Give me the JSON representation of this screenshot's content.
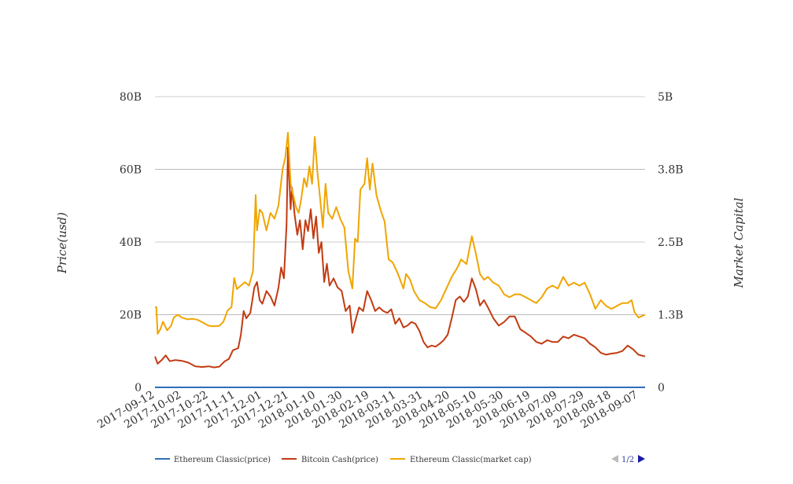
{
  "chart_data": {
    "type": "line",
    "y_left": {
      "title": "Price(usd)",
      "range": [
        0,
        80000000000
      ],
      "ticks": [
        0,
        20000000000,
        40000000000,
        60000000000,
        80000000000
      ],
      "tick_labels": [
        "0",
        "20B",
        "40B",
        "60B",
        "80B"
      ]
    },
    "y_right": {
      "title": "Market Capital",
      "range": [
        0,
        5000000000
      ],
      "tick_labels": [
        "0",
        "1.3B",
        "2.5B",
        "3.8B",
        "5B"
      ]
    },
    "x_tick_labels": [
      "2017-09-12",
      "2017-10-02",
      "2017-10-22",
      "2017-11-11",
      "2017-12-01",
      "2017-12-21",
      "2018-01-10",
      "2018-01-30",
      "2018-02-19",
      "2018-03-11",
      "2018-03-31",
      "2018-04-20",
      "2018-05-10",
      "2018-05-30",
      "2018-06-19",
      "2018-07-09",
      "2018-07-29",
      "2018-08-18",
      "2018-09-07"
    ],
    "x_range": [
      "2017-09-12",
      "2018-09-12"
    ],
    "grid": true,
    "legend": {
      "position": "bottom",
      "pager": "1/2"
    },
    "series": [
      {
        "name": "Ethereum Classic(price)",
        "axis": "left",
        "color": "#2e6fb5",
        "points": [
          [
            "2017-09-12",
            0
          ],
          [
            "2018-09-12",
            0
          ]
        ]
      },
      {
        "name": "Bitcoin Cash(price)",
        "axis": "left",
        "color": "#c23b12",
        "points": [
          [
            "2017-09-12",
            8.5
          ],
          [
            "2017-09-14",
            6.5
          ],
          [
            "2017-09-17",
            7.5
          ],
          [
            "2017-09-20",
            8.8
          ],
          [
            "2017-09-23",
            7.2
          ],
          [
            "2017-09-27",
            7.5
          ],
          [
            "2017-10-02",
            7.3
          ],
          [
            "2017-10-07",
            6.8
          ],
          [
            "2017-10-12",
            5.8
          ],
          [
            "2017-10-17",
            5.6
          ],
          [
            "2017-10-22",
            5.8
          ],
          [
            "2017-10-26",
            5.5
          ],
          [
            "2017-10-30",
            5.7
          ],
          [
            "2017-11-03",
            7.2
          ],
          [
            "2017-11-06",
            7.8
          ],
          [
            "2017-11-09",
            10.2
          ],
          [
            "2017-11-13",
            10.8
          ],
          [
            "2017-11-15",
            14.5
          ],
          [
            "2017-11-17",
            21.0
          ],
          [
            "2017-11-19",
            19.0
          ],
          [
            "2017-11-22",
            20.5
          ],
          [
            "2017-11-25",
            27.5
          ],
          [
            "2017-11-27",
            29.0
          ],
          [
            "2017-11-29",
            24.0
          ],
          [
            "2017-12-01",
            23.0
          ],
          [
            "2017-12-04",
            26.5
          ],
          [
            "2017-12-07",
            25.0
          ],
          [
            "2017-12-10",
            22.5
          ],
          [
            "2017-12-13",
            27.5
          ],
          [
            "2017-12-15",
            33.0
          ],
          [
            "2017-12-17",
            30.0
          ],
          [
            "2017-12-19",
            45.0
          ],
          [
            "2017-12-20",
            66.0
          ],
          [
            "2017-12-22",
            49.0
          ],
          [
            "2017-12-23",
            55.0
          ],
          [
            "2017-12-25",
            47.5
          ],
          [
            "2017-12-27",
            42.0
          ],
          [
            "2017-12-29",
            46.0
          ],
          [
            "2017-12-31",
            38.0
          ],
          [
            "2018-01-02",
            46.0
          ],
          [
            "2018-01-04",
            43.0
          ],
          [
            "2018-01-06",
            49.0
          ],
          [
            "2018-01-08",
            41.0
          ],
          [
            "2018-01-10",
            47.0
          ],
          [
            "2018-01-12",
            37.0
          ],
          [
            "2018-01-14",
            40.0
          ],
          [
            "2018-01-16",
            29.0
          ],
          [
            "2018-01-18",
            34.0
          ],
          [
            "2018-01-20",
            28.0
          ],
          [
            "2018-01-23",
            30.0
          ],
          [
            "2018-01-26",
            27.5
          ],
          [
            "2018-01-29",
            26.5
          ],
          [
            "2018-02-01",
            21.0
          ],
          [
            "2018-02-04",
            22.5
          ],
          [
            "2018-02-06",
            15.0
          ],
          [
            "2018-02-08",
            18.0
          ],
          [
            "2018-02-11",
            22.0
          ],
          [
            "2018-02-14",
            21.0
          ],
          [
            "2018-02-17",
            26.5
          ],
          [
            "2018-02-20",
            24.0
          ],
          [
            "2018-02-23",
            21.0
          ],
          [
            "2018-02-26",
            22.0
          ],
          [
            "2018-03-01",
            21.0
          ],
          [
            "2018-03-04",
            20.5
          ],
          [
            "2018-03-07",
            21.5
          ],
          [
            "2018-03-10",
            17.5
          ],
          [
            "2018-03-13",
            19.0
          ],
          [
            "2018-03-16",
            16.5
          ],
          [
            "2018-03-19",
            17.0
          ],
          [
            "2018-03-22",
            18.0
          ],
          [
            "2018-03-25",
            17.5
          ],
          [
            "2018-03-28",
            15.5
          ],
          [
            "2018-03-31",
            12.5
          ],
          [
            "2018-04-03",
            11.0
          ],
          [
            "2018-04-06",
            11.5
          ],
          [
            "2018-04-09",
            11.2
          ],
          [
            "2018-04-12",
            12.0
          ],
          [
            "2018-04-15",
            13.0
          ],
          [
            "2018-04-18",
            14.5
          ],
          [
            "2018-04-21",
            19.0
          ],
          [
            "2018-04-24",
            24.0
          ],
          [
            "2018-04-27",
            25.0
          ],
          [
            "2018-04-30",
            23.5
          ],
          [
            "2018-05-03",
            25.0
          ],
          [
            "2018-05-06",
            30.0
          ],
          [
            "2018-05-09",
            27.0
          ],
          [
            "2018-05-12",
            22.5
          ],
          [
            "2018-05-15",
            24.0
          ],
          [
            "2018-05-18",
            22.0
          ],
          [
            "2018-05-22",
            19.0
          ],
          [
            "2018-05-26",
            17.0
          ],
          [
            "2018-05-30",
            18.0
          ],
          [
            "2018-06-03",
            19.5
          ],
          [
            "2018-06-07",
            19.5
          ],
          [
            "2018-06-11",
            16.0
          ],
          [
            "2018-06-15",
            15.0
          ],
          [
            "2018-06-19",
            14.0
          ],
          [
            "2018-06-23",
            12.5
          ],
          [
            "2018-06-27",
            12.0
          ],
          [
            "2018-07-01",
            13.0
          ],
          [
            "2018-07-05",
            12.5
          ],
          [
            "2018-07-09",
            12.5
          ],
          [
            "2018-07-13",
            14.0
          ],
          [
            "2018-07-17",
            13.5
          ],
          [
            "2018-07-21",
            14.5
          ],
          [
            "2018-07-25",
            14.0
          ],
          [
            "2018-07-29",
            13.5
          ],
          [
            "2018-08-02",
            12.0
          ],
          [
            "2018-08-06",
            11.0
          ],
          [
            "2018-08-10",
            9.5
          ],
          [
            "2018-08-14",
            9.0
          ],
          [
            "2018-08-18",
            9.3
          ],
          [
            "2018-08-22",
            9.5
          ],
          [
            "2018-08-26",
            10.0
          ],
          [
            "2018-08-30",
            11.5
          ],
          [
            "2018-09-03",
            10.5
          ],
          [
            "2018-09-07",
            9.0
          ],
          [
            "2018-09-12",
            8.5
          ]
        ]
      },
      {
        "name": "Ethereum Classic(market cap)",
        "axis": "right",
        "color": "#f0a500",
        "points": [
          [
            "2017-09-12",
            1.38
          ],
          [
            "2017-09-13",
            1.38
          ],
          [
            "2017-09-14",
            0.92
          ],
          [
            "2017-09-16",
            1.0
          ],
          [
            "2017-09-18",
            1.13
          ],
          [
            "2017-09-21",
            0.98
          ],
          [
            "2017-09-24",
            1.06
          ],
          [
            "2017-09-26",
            1.2
          ],
          [
            "2017-09-29",
            1.25
          ],
          [
            "2017-10-02",
            1.2
          ],
          [
            "2017-10-06",
            1.17
          ],
          [
            "2017-10-10",
            1.18
          ],
          [
            "2017-10-14",
            1.16
          ],
          [
            "2017-10-18",
            1.11
          ],
          [
            "2017-10-22",
            1.06
          ],
          [
            "2017-10-26",
            1.05
          ],
          [
            "2017-10-30",
            1.06
          ],
          [
            "2017-11-02",
            1.13
          ],
          [
            "2017-11-05",
            1.32
          ],
          [
            "2017-11-08",
            1.38
          ],
          [
            "2017-11-10",
            1.88
          ],
          [
            "2017-11-12",
            1.69
          ],
          [
            "2017-11-15",
            1.75
          ],
          [
            "2017-11-18",
            1.81
          ],
          [
            "2017-11-21",
            1.75
          ],
          [
            "2017-11-24",
            2.0
          ],
          [
            "2017-11-26",
            3.31
          ],
          [
            "2017-11-27",
            2.7
          ],
          [
            "2017-11-29",
            3.06
          ],
          [
            "2017-12-01",
            3.0
          ],
          [
            "2017-12-04",
            2.7
          ],
          [
            "2017-12-07",
            3.0
          ],
          [
            "2017-12-10",
            2.9
          ],
          [
            "2017-12-13",
            3.13
          ],
          [
            "2017-12-16",
            3.75
          ],
          [
            "2017-12-18",
            3.95
          ],
          [
            "2017-12-20",
            4.38
          ],
          [
            "2017-12-22",
            3.5
          ],
          [
            "2017-12-24",
            3.3
          ],
          [
            "2017-12-26",
            3.1
          ],
          [
            "2017-12-28",
            3.0
          ],
          [
            "2017-12-30",
            3.25
          ],
          [
            "2018-01-01",
            3.6
          ],
          [
            "2018-01-03",
            3.45
          ],
          [
            "2018-01-05",
            3.8
          ],
          [
            "2018-01-07",
            3.5
          ],
          [
            "2018-01-09",
            4.31
          ],
          [
            "2018-01-11",
            3.7
          ],
          [
            "2018-01-13",
            3.25
          ],
          [
            "2018-01-15",
            2.75
          ],
          [
            "2018-01-17",
            3.5
          ],
          [
            "2018-01-19",
            3.0
          ],
          [
            "2018-01-22",
            2.9
          ],
          [
            "2018-01-25",
            3.1
          ],
          [
            "2018-01-28",
            2.9
          ],
          [
            "2018-01-31",
            2.75
          ],
          [
            "2018-02-03",
            2.0
          ],
          [
            "2018-02-06",
            1.7
          ],
          [
            "2018-02-08",
            2.56
          ],
          [
            "2018-02-10",
            2.5
          ],
          [
            "2018-02-12",
            3.4
          ],
          [
            "2018-02-15",
            3.5
          ],
          [
            "2018-02-17",
            3.94
          ],
          [
            "2018-02-19",
            3.4
          ],
          [
            "2018-02-21",
            3.85
          ],
          [
            "2018-02-24",
            3.3
          ],
          [
            "2018-02-27",
            3.05
          ],
          [
            "2018-03-02",
            2.85
          ],
          [
            "2018-03-05",
            2.2
          ],
          [
            "2018-03-08",
            2.15
          ],
          [
            "2018-03-12",
            1.95
          ],
          [
            "2018-03-16",
            1.7
          ],
          [
            "2018-03-18",
            1.95
          ],
          [
            "2018-03-21",
            1.85
          ],
          [
            "2018-03-24",
            1.65
          ],
          [
            "2018-03-28",
            1.5
          ],
          [
            "2018-04-01",
            1.45
          ],
          [
            "2018-04-05",
            1.38
          ],
          [
            "2018-04-09",
            1.36
          ],
          [
            "2018-04-13",
            1.5
          ],
          [
            "2018-04-17",
            1.7
          ],
          [
            "2018-04-21",
            1.9
          ],
          [
            "2018-04-25",
            2.05
          ],
          [
            "2018-04-28",
            2.2
          ],
          [
            "2018-05-02",
            2.12
          ],
          [
            "2018-05-06",
            2.6
          ],
          [
            "2018-05-09",
            2.3
          ],
          [
            "2018-05-12",
            1.95
          ],
          [
            "2018-05-15",
            1.85
          ],
          [
            "2018-05-18",
            1.9
          ],
          [
            "2018-05-22",
            1.8
          ],
          [
            "2018-05-26",
            1.75
          ],
          [
            "2018-05-30",
            1.6
          ],
          [
            "2018-06-03",
            1.55
          ],
          [
            "2018-06-07",
            1.6
          ],
          [
            "2018-06-11",
            1.6
          ],
          [
            "2018-06-15",
            1.55
          ],
          [
            "2018-06-19",
            1.5
          ],
          [
            "2018-06-23",
            1.45
          ],
          [
            "2018-06-27",
            1.55
          ],
          [
            "2018-07-01",
            1.7
          ],
          [
            "2018-07-05",
            1.75
          ],
          [
            "2018-07-09",
            1.7
          ],
          [
            "2018-07-13",
            1.9
          ],
          [
            "2018-07-17",
            1.75
          ],
          [
            "2018-07-21",
            1.8
          ],
          [
            "2018-07-25",
            1.75
          ],
          [
            "2018-07-29",
            1.8
          ],
          [
            "2018-08-02",
            1.6
          ],
          [
            "2018-08-06",
            1.35
          ],
          [
            "2018-08-10",
            1.5
          ],
          [
            "2018-08-14",
            1.4
          ],
          [
            "2018-08-18",
            1.35
          ],
          [
            "2018-08-22",
            1.4
          ],
          [
            "2018-08-26",
            1.45
          ],
          [
            "2018-08-30",
            1.45
          ],
          [
            "2018-09-02",
            1.5
          ],
          [
            "2018-09-04",
            1.3
          ],
          [
            "2018-09-07",
            1.2
          ],
          [
            "2018-09-12",
            1.25
          ]
        ]
      }
    ]
  },
  "legend": {
    "items": [
      "Ethereum Classic(price)",
      "Bitcoin Cash(price)",
      "Ethereum Classic(market cap)"
    ],
    "pager_label": "1/2",
    "pager_prev_icon": "triangle-left-icon",
    "pager_next_icon": "triangle-right-icon"
  }
}
